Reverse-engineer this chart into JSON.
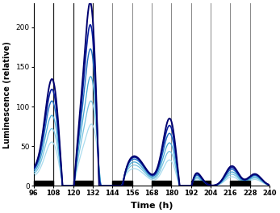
{
  "xlim": [
    96,
    240
  ],
  "ylim": [
    0,
    230
  ],
  "xticks": [
    96,
    108,
    120,
    132,
    144,
    156,
    168,
    180,
    192,
    204,
    216,
    228,
    240
  ],
  "yticks": [
    0,
    50,
    100,
    150,
    200
  ],
  "xlabel": "Time (h)",
  "ylabel": "Luminescence (relative)",
  "vlines": [
    96,
    108,
    120,
    132,
    144,
    156,
    168,
    180,
    192,
    204,
    216,
    228,
    240
  ],
  "dark_bars": [
    [
      96,
      108
    ],
    [
      120,
      132
    ],
    [
      144,
      156
    ],
    [
      168,
      180
    ],
    [
      192,
      204
    ],
    [
      216,
      228
    ]
  ],
  "colors": [
    "#aadcee",
    "#78c4e0",
    "#44a8d4",
    "#1e6ec0",
    "#0820a0",
    "#000070"
  ],
  "line_widths": [
    0.9,
    0.9,
    0.9,
    1.0,
    1.2,
    1.4
  ],
  "n_lines": 6,
  "scale_factors": [
    0.58,
    0.7,
    0.8,
    0.9,
    0.96,
    1.0
  ],
  "background_color": "#ffffff"
}
